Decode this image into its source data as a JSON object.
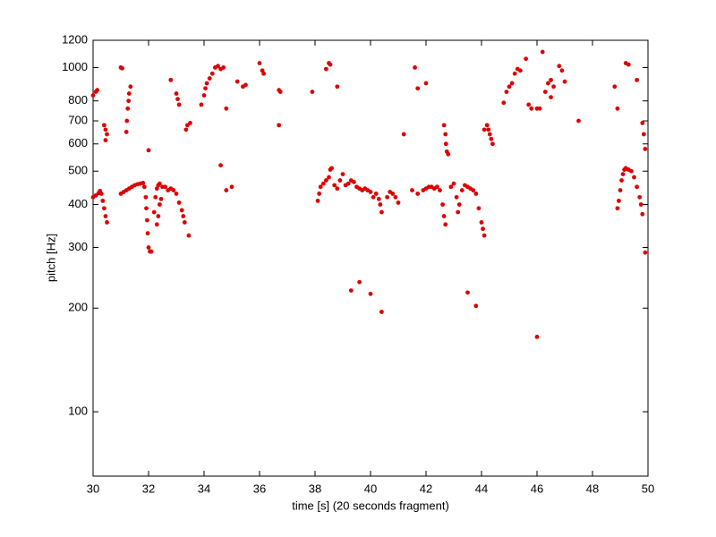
{
  "chart_data": {
    "type": "scatter",
    "xlabel": "time [s] (20 seconds fragment)",
    "ylabel": "pitch [Hz]",
    "yscale": "log",
    "color": "#dd0000",
    "xlim": [
      30,
      50
    ],
    "xticks": [
      30,
      32,
      34,
      36,
      38,
      40,
      42,
      44,
      46,
      48,
      50
    ],
    "ylim": [
      65,
      1200
    ],
    "yticks": [
      100,
      200,
      300,
      400,
      500,
      600,
      700,
      800,
      1000,
      1200
    ],
    "x": [
      30.0,
      30.1,
      30.2,
      30.25,
      30.3,
      30.35,
      30.4,
      30.45,
      30.5,
      30.0,
      30.1,
      30.15,
      30.4,
      30.45,
      30.5,
      30.45,
      31.0,
      31.05,
      31.2,
      31.22,
      31.25,
      31.28,
      31.3,
      31.35,
      31.0,
      31.1,
      31.2,
      31.3,
      31.4,
      31.5,
      31.6,
      31.7,
      31.8,
      31.85,
      31.9,
      31.92,
      31.95,
      31.97,
      32.0,
      32.05,
      32.1,
      32.0,
      32.2,
      32.25,
      32.3,
      32.35,
      32.4,
      32.5,
      32.6,
      32.7,
      32.8,
      32.9,
      33.0,
      33.1,
      33.2,
      33.25,
      33.3,
      33.45,
      32.3,
      32.35,
      32.4,
      32.45,
      32.8,
      33.0,
      33.05,
      33.1,
      33.35,
      33.4,
      33.5,
      33.9,
      34.0,
      34.05,
      34.1,
      34.2,
      34.3,
      34.4,
      34.5,
      34.6,
      34.7,
      34.8,
      34.6,
      34.8,
      35.0,
      35.2,
      35.4,
      35.5,
      36.0,
      36.1,
      36.15,
      36.7,
      36.75,
      36.7,
      37.9,
      38.4,
      38.5,
      38.55,
      38.8,
      38.1,
      38.15,
      38.2,
      38.3,
      38.4,
      38.5,
      38.6,
      38.55,
      38.7,
      38.8,
      38.9,
      39.0,
      39.1,
      39.2,
      39.3,
      39.4,
      39.5,
      39.6,
      39.7,
      39.8,
      39.9,
      40.0,
      40.1,
      40.2,
      40.3,
      40.35,
      40.4,
      40.6,
      40.7,
      40.8,
      40.9,
      41.0,
      39.3,
      39.6,
      40.0,
      40.4,
      41.2,
      41.6,
      41.7,
      42.0,
      41.5,
      41.7,
      41.9,
      42.0,
      42.1,
      42.2,
      42.3,
      42.4,
      42.5,
      42.6,
      42.65,
      42.7,
      42.65,
      42.7,
      42.72,
      42.75,
      42.8,
      42.9,
      43.0,
      43.1,
      43.15,
      43.2,
      43.3,
      43.4,
      43.5,
      43.6,
      43.7,
      43.8,
      43.9,
      44.0,
      44.05,
      44.1,
      43.5,
      43.8,
      44.1,
      44.2,
      44.25,
      44.3,
      44.35,
      44.4,
      44.8,
      44.9,
      45.0,
      45.1,
      45.2,
      45.3,
      45.4,
      45.6,
      45.7,
      45.8,
      46.0,
      46.1,
      46.0,
      46.2,
      46.3,
      46.4,
      46.5,
      46.6,
      46.5,
      46.8,
      46.9,
      47.0,
      47.5,
      48.9,
      48.95,
      49.0,
      49.05,
      49.1,
      49.15,
      49.2,
      49.3,
      49.4,
      49.5,
      49.6,
      49.7,
      49.75,
      49.8,
      49.9,
      48.8,
      48.9,
      49.2,
      49.3,
      49.6,
      49.8,
      49.85,
      49.9
    ],
    "y": [
      420,
      425,
      432,
      438,
      430,
      410,
      390,
      370,
      355,
      830,
      850,
      860,
      680,
      660,
      640,
      615,
      1000,
      995,
      650,
      700,
      760,
      800,
      840,
      880,
      430,
      435,
      440,
      445,
      450,
      455,
      458,
      460,
      462,
      450,
      420,
      390,
      360,
      330,
      300,
      292,
      292,
      575,
      380,
      420,
      445,
      455,
      460,
      450,
      450,
      440,
      445,
      440,
      430,
      405,
      385,
      370,
      355,
      325,
      350,
      370,
      400,
      415,
      920,
      840,
      810,
      780,
      660,
      680,
      690,
      780,
      830,
      870,
      900,
      930,
      960,
      1000,
      1010,
      990,
      1000,
      760,
      520,
      440,
      450,
      910,
      880,
      890,
      1030,
      980,
      960,
      860,
      850,
      680,
      850,
      990,
      1030,
      1020,
      880,
      410,
      430,
      450,
      460,
      470,
      480,
      510,
      505,
      455,
      445,
      470,
      490,
      455,
      460,
      470,
      465,
      450,
      445,
      440,
      445,
      440,
      435,
      420,
      430,
      415,
      400,
      380,
      420,
      435,
      430,
      420,
      405,
      225,
      238,
      220,
      195,
      640,
      1000,
      870,
      900,
      440,
      430,
      440,
      445,
      450,
      450,
      445,
      450,
      440,
      400,
      370,
      350,
      680,
      640,
      600,
      570,
      560,
      450,
      460,
      420,
      380,
      400,
      440,
      455,
      450,
      445,
      440,
      430,
      390,
      355,
      340,
      325,
      222,
      203,
      660,
      680,
      660,
      640,
      620,
      600,
      790,
      850,
      880,
      900,
      960,
      990,
      980,
      1060,
      780,
      760,
      760,
      760,
      165,
      1110,
      850,
      900,
      920,
      880,
      820,
      1010,
      980,
      910,
      700,
      390,
      410,
      440,
      470,
      490,
      505,
      510,
      505,
      500,
      480,
      450,
      420,
      400,
      375,
      290,
      880,
      760,
      1030,
      1020,
      920,
      690,
      640,
      580
    ]
  }
}
